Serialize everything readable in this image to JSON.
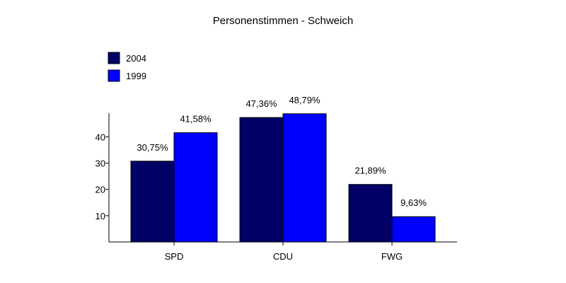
{
  "chart_data": {
    "type": "bar",
    "title": "Personenstimmen - Schweich",
    "categories": [
      "SPD",
      "CDU",
      "FWG"
    ],
    "series": [
      {
        "name": "2004",
        "color": "#000066",
        "values": [
          30.75,
          47.36,
          21.89
        ],
        "labels": [
          "30,75%",
          "47,36%",
          "21,89%"
        ]
      },
      {
        "name": "1999",
        "color": "#0000ff",
        "values": [
          41.58,
          48.79,
          9.63
        ],
        "labels": [
          "41,58%",
          "48,79%",
          "9,63%"
        ]
      }
    ],
    "yticks": [
      10,
      20,
      30,
      40
    ],
    "ylim": [
      0,
      49
    ],
    "legend_position": "top-left",
    "grid": false
  }
}
